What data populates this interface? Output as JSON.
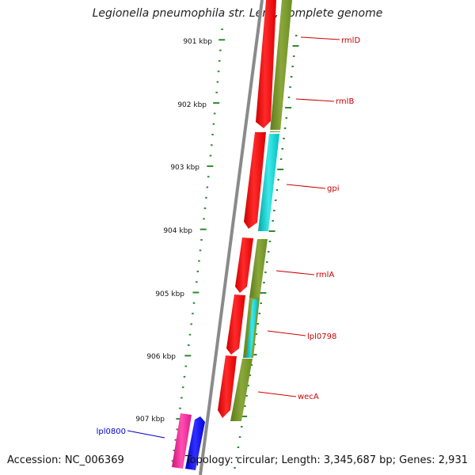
{
  "title": "Legionella pneumophila str. Lens, complete genome",
  "accession": "Accession: NC_006369",
  "topology": "Topology: circular; Length: 3,345,687 bp; Genes: 2,931",
  "ruler_labels": [
    "901 kbp",
    "902 kbp",
    "903 kbp",
    "904 kbp",
    "905 kbp",
    "906 kbp",
    "907 kbp"
  ],
  "gene_labels": [
    "rmlD",
    "rmlB",
    "gpi",
    "rmlA",
    "lpl0798",
    "wecA",
    "lpl0800"
  ],
  "colors": {
    "backbone": "#888888",
    "ruler": "#2e8b2e",
    "cds": "#ff0000",
    "olive": "#6b8e23",
    "cyan": "#00c8c8",
    "pink": "#ff1493",
    "blue": "#0000ff",
    "label_red": "#cc0000",
    "label_blue": "#0000cc"
  }
}
